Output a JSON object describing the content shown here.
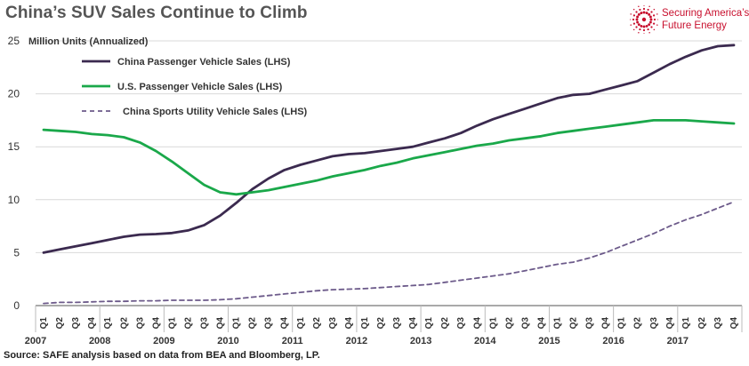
{
  "header": {
    "title": "China’s SUV Sales Continue to Climb"
  },
  "logo": {
    "line1": "Securing America’s",
    "line2": "Future Energy",
    "icon": "starburst-icon",
    "color": "#c8102e"
  },
  "source": "Source: SAFE analysis based on data from BEA and Bloomberg, LP.",
  "chart_data": {
    "type": "line",
    "title": "China’s SUV Sales Continue to Climb",
    "ylabel": "Million Units (Annualized)",
    "ylim": [
      0,
      25
    ],
    "yticks": [
      0,
      5,
      10,
      15,
      20,
      25
    ],
    "grid": true,
    "legend_position": "top-left",
    "years": [
      "2007",
      "2008",
      "2009",
      "2010",
      "2011",
      "2012",
      "2013",
      "2014",
      "2015",
      "2016",
      "2017"
    ],
    "quarters": [
      "Q1",
      "Q2",
      "Q3",
      "Q4"
    ],
    "x": [
      "2007 Q1",
      "2007 Q2",
      "2007 Q3",
      "2007 Q4",
      "2008 Q1",
      "2008 Q2",
      "2008 Q3",
      "2008 Q4",
      "2009 Q1",
      "2009 Q2",
      "2009 Q3",
      "2009 Q4",
      "2010 Q1",
      "2010 Q2",
      "2010 Q3",
      "2010 Q4",
      "2011 Q1",
      "2011 Q2",
      "2011 Q3",
      "2011 Q4",
      "2012 Q1",
      "2012 Q2",
      "2012 Q3",
      "2012 Q4",
      "2013 Q1",
      "2013 Q2",
      "2013 Q3",
      "2013 Q4",
      "2014 Q1",
      "2014 Q2",
      "2014 Q3",
      "2014 Q4",
      "2015 Q1",
      "2015 Q2",
      "2015 Q3",
      "2015 Q4",
      "2016 Q1",
      "2016 Q2",
      "2016 Q3",
      "2016 Q4",
      "2017 Q1",
      "2017 Q2",
      "2017 Q3",
      "2017 Q4"
    ],
    "series": [
      {
        "name": "China Passenger Vehicle Sales (LHS)",
        "color": "#3b2a4f",
        "style": "solid",
        "values": [
          5.0,
          5.3,
          5.6,
          5.9,
          6.2,
          6.5,
          6.7,
          6.75,
          6.85,
          7.1,
          7.6,
          8.5,
          9.7,
          11.0,
          12.0,
          12.8,
          13.3,
          13.7,
          14.1,
          14.3,
          14.4,
          14.6,
          14.8,
          15.0,
          15.4,
          15.8,
          16.3,
          17.0,
          17.6,
          18.1,
          18.6,
          19.1,
          19.6,
          19.9,
          20.0,
          20.4,
          20.8,
          21.2,
          22.0,
          22.8,
          23.5,
          24.1,
          24.5,
          24.6
        ]
      },
      {
        "name": "U.S. Passenger Vehicle Sales (LHS)",
        "color": "#1aa84a",
        "style": "solid",
        "values": [
          16.6,
          16.5,
          16.4,
          16.2,
          16.1,
          15.9,
          15.4,
          14.6,
          13.6,
          12.5,
          11.4,
          10.7,
          10.5,
          10.7,
          10.9,
          11.2,
          11.5,
          11.8,
          12.2,
          12.5,
          12.8,
          13.2,
          13.5,
          13.9,
          14.2,
          14.5,
          14.8,
          15.1,
          15.3,
          15.6,
          15.8,
          16.0,
          16.3,
          16.5,
          16.7,
          16.9,
          17.1,
          17.3,
          17.5,
          17.5,
          17.5,
          17.4,
          17.3,
          17.2
        ]
      },
      {
        "name": "China Sports Utility Vehicle Sales (LHS)",
        "color": "#6c5a8a",
        "style": "dashed",
        "values": [
          0.2,
          0.3,
          0.3,
          0.35,
          0.4,
          0.4,
          0.45,
          0.45,
          0.5,
          0.5,
          0.5,
          0.55,
          0.65,
          0.8,
          0.95,
          1.1,
          1.25,
          1.4,
          1.5,
          1.55,
          1.6,
          1.7,
          1.8,
          1.9,
          2.0,
          2.2,
          2.4,
          2.6,
          2.8,
          3.0,
          3.3,
          3.6,
          3.9,
          4.1,
          4.5,
          5.0,
          5.6,
          6.2,
          6.8,
          7.5,
          8.1,
          8.6,
          9.2,
          9.8
        ]
      }
    ]
  }
}
